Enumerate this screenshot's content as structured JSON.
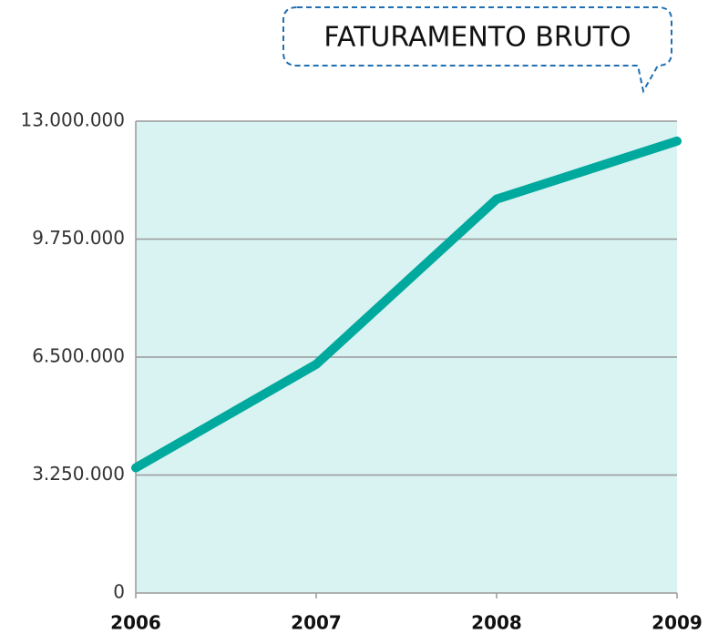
{
  "chart_data": {
    "type": "line",
    "title": "FATURAMENTO BRUTO",
    "categories": [
      "2006",
      "2007",
      "2008",
      "2009"
    ],
    "series": [
      {
        "name": "Faturamento bruto",
        "color": "#00a99d",
        "values": [
          3450000,
          6300000,
          10850000,
          12450000
        ]
      }
    ],
    "ylim": [
      0,
      13000000
    ],
    "yticks": [
      0,
      {
        "value": 3250000,
        "label": "3.250.000"
      },
      {
        "value": 6500000,
        "label": "6.500.000"
      },
      {
        "value": 9750000,
        "label": "9.750.000"
      },
      {
        "value": 13000000,
        "label": "13.000.000"
      }
    ],
    "grid": true,
    "plot_background": "#d9f2f2"
  }
}
